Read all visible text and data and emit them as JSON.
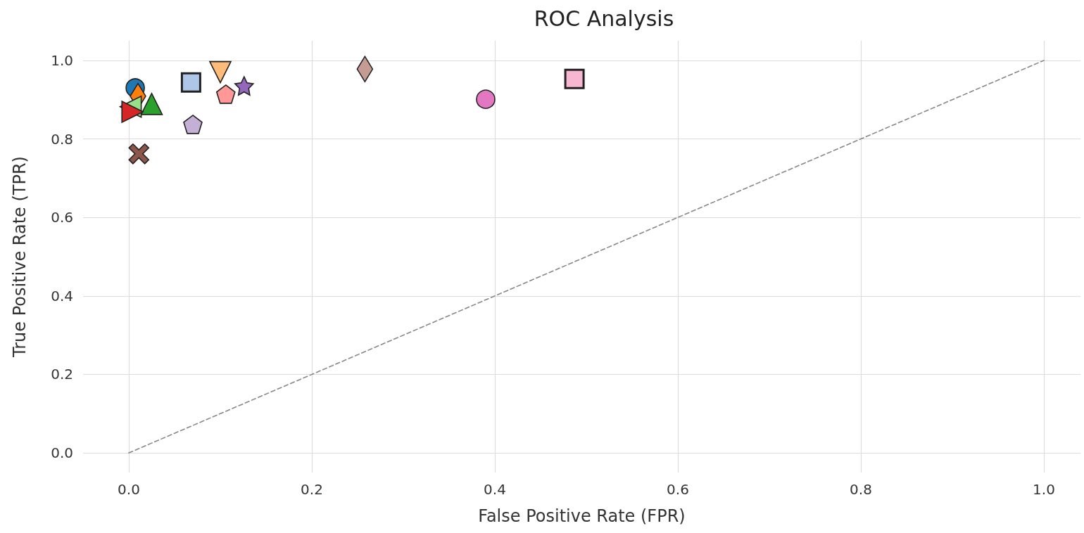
{
  "chart_data": {
    "type": "scatter",
    "title": "ROC Analysis",
    "xlabel": "False Positive Rate (FPR)",
    "ylabel": "True Positive Rate (TPR)",
    "xlim": [
      -0.05,
      1.04
    ],
    "ylim": [
      -0.05,
      1.05
    ],
    "xticks": [
      {
        "value": 0,
        "label": "0.0"
      },
      0.2,
      0.4,
      0.6,
      0.8,
      {
        "value": 1,
        "label": "1.0"
      }
    ],
    "yticks": [
      {
        "value": 0,
        "label": "0.0"
      },
      0.2,
      0.4,
      0.6,
      0.8,
      {
        "value": 1,
        "label": "1.0"
      }
    ],
    "grid": true,
    "series": [
      {
        "type": "line",
        "color": "#888888",
        "x": [
          0,
          1
        ],
        "values": [
          0,
          1
        ],
        "line_style": "dashed",
        "marker": "none"
      },
      {
        "color": "#1f77b4",
        "x": [
          0.007
        ],
        "values": [
          0.93
        ],
        "marker": "circle"
      },
      {
        "color": "#ff7f0e",
        "x": [
          0.01
        ],
        "values": [
          0.909
        ],
        "marker": "diamond"
      },
      {
        "color": "#2ca02c",
        "x": [
          0.025
        ],
        "values": [
          0.889
        ],
        "marker": "triangle"
      },
      {
        "color": "#98df8a",
        "x": [
          0.002
        ],
        "values": [
          0.882
        ],
        "marker": "triangle-left"
      },
      {
        "color": "#d62728",
        "x": [
          0.004
        ],
        "values": [
          0.869
        ],
        "marker": "triangle-right"
      },
      {
        "color": "#8c564b",
        "x": [
          0.011
        ],
        "values": [
          0.762
        ],
        "marker": "cross"
      },
      {
        "color": "#aec7e8",
        "x": [
          0.068
        ],
        "values": [
          0.944
        ],
        "marker": "square"
      },
      {
        "color": "#c5b0d5",
        "x": [
          0.07
        ],
        "values": [
          0.837
        ]
      },
      {
        "color": "#ffbb78",
        "x": [
          0.1
        ],
        "values": [
          0.97
        ],
        "marker": "triangle-down"
      },
      {
        "color": "#ff9896",
        "x": [
          0.106
        ],
        "values": [
          0.914
        ]
      },
      {
        "color": "#9467bd",
        "x": [
          0.126
        ],
        "values": [
          0.935
        ],
        "marker": "star"
      },
      {
        "color": "#c49c94",
        "x": [
          0.258
        ],
        "values": [
          0.978
        ],
        "marker": "diamond"
      },
      {
        "color": "#e377c2",
        "x": [
          0.39
        ],
        "values": [
          0.901
        ],
        "marker": "circle"
      },
      {
        "color": "#f7b6d2",
        "x": [
          0.487
        ],
        "values": [
          0.953
        ],
        "marker": "square"
      }
    ]
  }
}
